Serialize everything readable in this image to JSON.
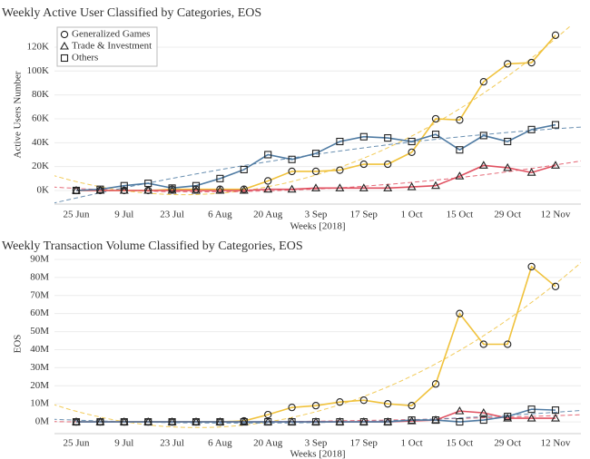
{
  "chart_data": [
    {
      "type": "line",
      "title": "Weekly Active User Classified by Categories, EOS",
      "x_label": "Weeks [2018]",
      "y_label": "Active Users Number",
      "categories": [
        "25 Jun",
        null,
        "9 Jul",
        null,
        "23 Jul",
        null,
        "6 Aug",
        null,
        "20 Aug",
        null,
        "3 Sep",
        null,
        "17 Sep",
        null,
        "1 Oct",
        null,
        "15 Oct",
        null,
        "29 Oct",
        null,
        "12 Nov"
      ],
      "series": [
        {
          "name": "Generalized Games",
          "color": "#f0c23c",
          "marker": "circle",
          "values": [
            0,
            0,
            0,
            0,
            1000,
            1000,
            1000,
            1000,
            8000,
            16000,
            16000,
            17000,
            22000,
            22000,
            32000,
            60000,
            59000,
            91000,
            106000,
            107000,
            130000
          ]
        },
        {
          "name": "Trade & Investment",
          "color": "#e05060",
          "marker": "triangle",
          "values": [
            0,
            0,
            0,
            0,
            0,
            0,
            0,
            0,
            1000,
            1000,
            2000,
            2000,
            2000,
            2000,
            3000,
            4000,
            12000,
            21000,
            19000,
            15000,
            21000
          ]
        },
        {
          "name": "Others",
          "color": "#4f7ba3",
          "marker": "square",
          "values": [
            0,
            1000,
            4000,
            6000,
            2000,
            4000,
            10000,
            17500,
            30000,
            26000,
            31000,
            41000,
            45000,
            44000,
            41000,
            47000,
            34000,
            46000,
            41000,
            51000,
            55000
          ]
        }
      ],
      "ylim": [
        -11400,
        138200
      ],
      "yticks": [
        {
          "value": 0,
          "label": "0K"
        },
        {
          "value": 20000,
          "label": "20K"
        },
        {
          "value": 40000,
          "label": "40K"
        },
        {
          "value": 60000,
          "label": "60K"
        },
        {
          "value": 80000,
          "label": "80K"
        },
        {
          "value": 100000,
          "label": "100K"
        },
        {
          "value": 120000,
          "label": "120K"
        }
      ],
      "grid": true,
      "trend_lines": true,
      "legend": "upper left"
    },
    {
      "type": "line",
      "title": "Weekly Transaction Volume Classified by Categories, EOS",
      "x_label": "Weeks [2018]",
      "y_label": "EOS",
      "categories": [
        "25 Jun",
        null,
        "9 Jul",
        null,
        "23 Jul",
        null,
        "6 Aug",
        null,
        "20 Aug",
        null,
        "3 Sep",
        null,
        "17 Sep",
        null,
        "1 Oct",
        null,
        "15 Oct",
        null,
        "29 Oct",
        null,
        "12 Nov"
      ],
      "series": [
        {
          "color": "#f0c23c",
          "marker": "circle",
          "values": [
            0,
            0,
            0,
            0,
            0,
            0,
            0,
            500000,
            4000000,
            8000000,
            9000000,
            11000000,
            12000000,
            10000000,
            9000000,
            21000000,
            60000000,
            43000000,
            43000000,
            86000000,
            75000000
          ]
        },
        {
          "color": "#e05060",
          "marker": "triangle",
          "values": [
            0,
            0,
            0,
            0,
            0,
            0,
            0,
            0,
            0,
            0,
            0,
            0,
            0,
            0,
            500000,
            1000000,
            6000000,
            5000000,
            2000000,
            2000000,
            2000000
          ]
        },
        {
          "color": "#4f7ba3",
          "marker": "square",
          "values": [
            0,
            0,
            0,
            0,
            0,
            0,
            0,
            0,
            0,
            0,
            0,
            0,
            0,
            0,
            1000000,
            1000000,
            0,
            1000000,
            3000000,
            7000000,
            6500000
          ]
        }
      ],
      "ylim": [
        -6500000,
        93000000
      ],
      "yticks": [
        {
          "value": 0,
          "label": "0M"
        },
        {
          "value": 10000000,
          "label": "10M"
        },
        {
          "value": 20000000,
          "label": "20M"
        },
        {
          "value": 30000000,
          "label": "30M"
        },
        {
          "value": 40000000,
          "label": "40M"
        },
        {
          "value": 50000000,
          "label": "50M"
        },
        {
          "value": 60000000,
          "label": "60M"
        },
        {
          "value": 70000000,
          "label": "70M"
        },
        {
          "value": 80000000,
          "label": "80M"
        },
        {
          "value": 90000000,
          "label": "90M"
        }
      ],
      "grid": true,
      "trend_lines": true
    }
  ]
}
